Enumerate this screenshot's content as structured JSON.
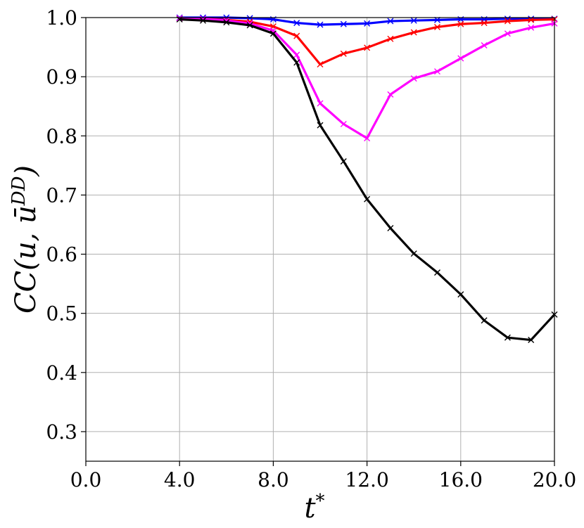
{
  "chart_data": {
    "type": "line",
    "xlabel": "t*",
    "ylabel": "CC(u, ū^DD)",
    "xlim": [
      0,
      20
    ],
    "ylim": [
      0.25,
      1.0
    ],
    "xticks": [
      0,
      4,
      8,
      12,
      16,
      20
    ],
    "xtick_labels": [
      "0.0",
      "4.0",
      "8.0",
      "12.0",
      "16.0",
      "20.0"
    ],
    "yticks": [
      0.3,
      0.4,
      0.5,
      0.6,
      0.7,
      0.8,
      0.9,
      1.0
    ],
    "ytick_labels": [
      "0.3",
      "0.4",
      "0.5",
      "0.6",
      "0.7",
      "0.8",
      "0.9",
      "1.0"
    ],
    "grid": true,
    "x": [
      4,
      5,
      6,
      7,
      8,
      9,
      10,
      11,
      12,
      13,
      14,
      15,
      16,
      17,
      18,
      19,
      20
    ],
    "series": [
      {
        "color": "#0000ff",
        "values": [
          1.0,
          1.0,
          1.0,
          0.999,
          0.997,
          0.991,
          0.988,
          0.989,
          0.99,
          0.994,
          0.995,
          0.996,
          0.997,
          0.997,
          0.998,
          0.998,
          0.998
        ]
      },
      {
        "color": "#ff0000",
        "values": [
          0.999,
          0.998,
          0.996,
          0.993,
          0.985,
          0.969,
          0.921,
          0.939,
          0.949,
          0.964,
          0.975,
          0.984,
          0.989,
          0.991,
          0.994,
          0.996,
          0.997
        ]
      },
      {
        "color": "#ff00ff",
        "values": [
          0.999,
          0.998,
          0.995,
          0.99,
          0.978,
          0.937,
          0.855,
          0.82,
          0.796,
          0.87,
          0.897,
          0.909,
          0.931,
          0.953,
          0.973,
          0.983,
          0.99
        ]
      },
      {
        "color": "#000000",
        "values": [
          0.997,
          0.995,
          0.992,
          0.987,
          0.973,
          0.924,
          0.818,
          0.757,
          0.693,
          0.644,
          0.601,
          0.569,
          0.532,
          0.488,
          0.459,
          0.455,
          0.498
        ]
      }
    ]
  }
}
